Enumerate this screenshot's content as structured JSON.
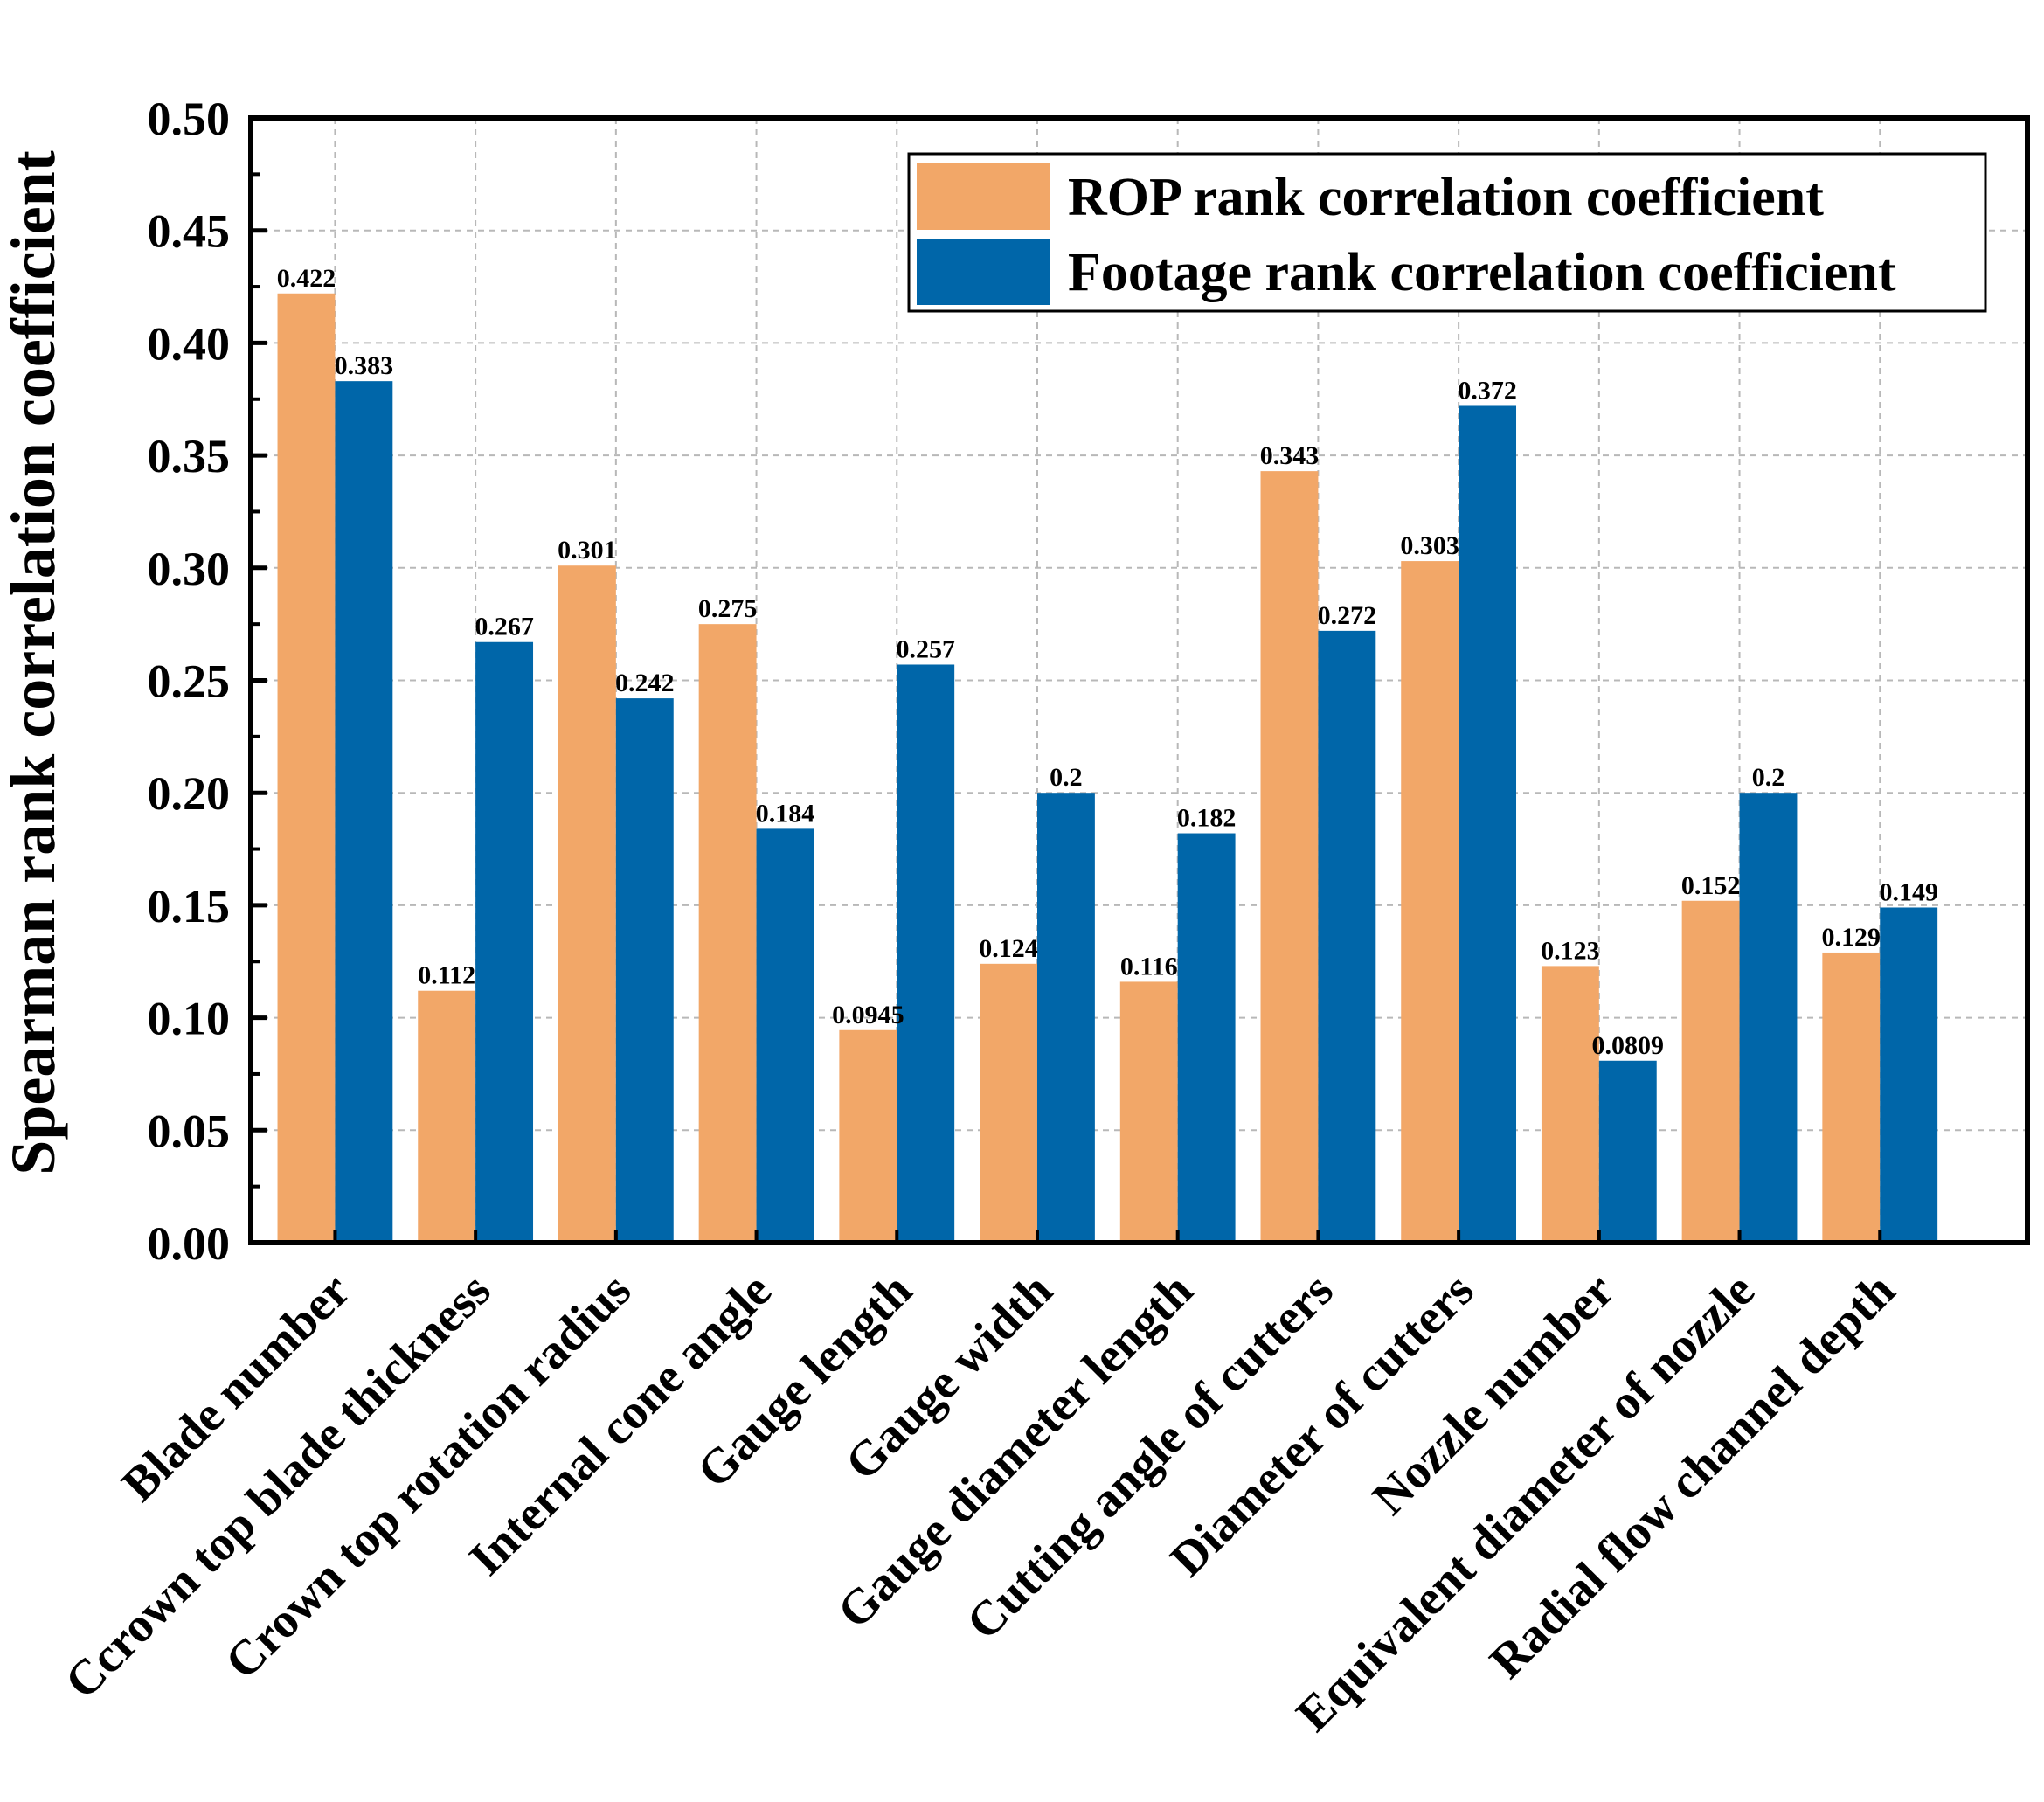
{
  "chart_data": {
    "type": "bar",
    "title": "",
    "xlabel": "",
    "ylabel": "Spearman rank correlation coefficient",
    "ylim": [
      0,
      0.5
    ],
    "yticks": [
      "0.00",
      "0.05",
      "0.10",
      "0.15",
      "0.20",
      "0.25",
      "0.30",
      "0.35",
      "0.40",
      "0.45",
      "0.50"
    ],
    "grid": true,
    "legend_position": "top-right",
    "categories": [
      "Blade number",
      "Ccrown top blade thickness",
      "Crown top rotation radius",
      "Internal cone angle",
      "Gauge length",
      "Gauge width",
      "Gauge diameter length",
      "Cutting angle of cutters",
      "Diameter of cutters",
      "Nozzle number",
      "Equivalent diameter of nozzle",
      "Radial flow channel depth"
    ],
    "series": [
      {
        "name": "ROP rank correlation coefficient",
        "color": "#F2A768",
        "values": [
          0.422,
          0.112,
          0.301,
          0.275,
          0.0945,
          0.124,
          0.116,
          0.343,
          0.303,
          0.123,
          0.152,
          0.129
        ],
        "labels": [
          "0.422",
          "0.112",
          "0.301",
          "0.275",
          "0.0945",
          "0.124",
          "0.116",
          "0.343",
          "0.303",
          "0.123",
          "0.152",
          "0.129"
        ]
      },
      {
        "name": "Footage rank correlation coefficient",
        "color": "#0066A9",
        "values": [
          0.383,
          0.267,
          0.242,
          0.184,
          0.257,
          0.2,
          0.182,
          0.272,
          0.372,
          0.0809,
          0.2,
          0.149
        ],
        "labels": [
          "0.383",
          "0.267",
          "0.242",
          "0.184",
          "0.257",
          "0.2",
          "0.182",
          "0.272",
          "0.372",
          "0.0809",
          "0.2",
          "0.149"
        ]
      }
    ]
  }
}
